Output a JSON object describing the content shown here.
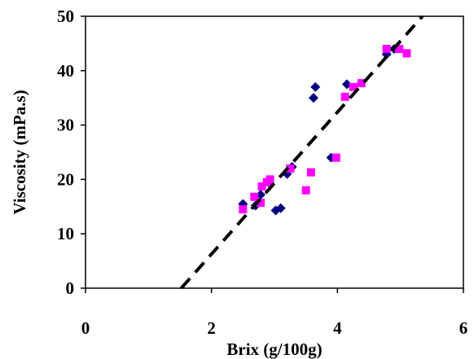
{
  "chart_data": {
    "type": "scatter",
    "xlabel": "Brix (g/100g)",
    "ylabel": "Viscosity (mPa.s)",
    "xlim": [
      0,
      6
    ],
    "ylim": [
      0,
      50
    ],
    "x_ticks": [
      0,
      2,
      4,
      6
    ],
    "y_ticks": [
      0,
      10,
      20,
      30,
      40,
      50
    ],
    "x_tick_labels": [
      "0",
      "2",
      "4",
      "6"
    ],
    "y_tick_labels": [
      "0",
      "10",
      "20",
      "30",
      "40",
      "50"
    ],
    "grid": false,
    "legend": "none",
    "series": [
      {
        "marker": "diamond",
        "color": "#000080",
        "points": [
          [
            2.5,
            15.5
          ],
          [
            2.7,
            15.2
          ],
          [
            2.78,
            17.2
          ],
          [
            2.9,
            19.5
          ],
          [
            3.02,
            14.3
          ],
          [
            3.1,
            14.7
          ],
          [
            3.2,
            21.0
          ],
          [
            3.28,
            22.3
          ],
          [
            3.62,
            35.0
          ],
          [
            3.65,
            37.0
          ],
          [
            3.9,
            24.0
          ],
          [
            4.15,
            37.5
          ],
          [
            4.78,
            43.0
          ],
          [
            4.9,
            44.0
          ]
        ]
      },
      {
        "marker": "square",
        "color": "#ff00ff",
        "points": [
          [
            2.5,
            14.5
          ],
          [
            2.68,
            16.8
          ],
          [
            2.78,
            15.7
          ],
          [
            2.8,
            18.7
          ],
          [
            2.88,
            19.5
          ],
          [
            2.93,
            20.0
          ],
          [
            3.25,
            22.0
          ],
          [
            3.5,
            18.0
          ],
          [
            3.58,
            21.3
          ],
          [
            3.98,
            24.0
          ],
          [
            4.12,
            35.2
          ],
          [
            4.25,
            37.0
          ],
          [
            4.38,
            37.7
          ],
          [
            4.78,
            44.0
          ],
          [
            4.98,
            44.0
          ],
          [
            5.1,
            43.2
          ]
        ]
      }
    ],
    "trendline": {
      "style": "dashed",
      "color": "#000000",
      "from": [
        1.52,
        0
      ],
      "to": [
        5.35,
        50
      ]
    }
  }
}
